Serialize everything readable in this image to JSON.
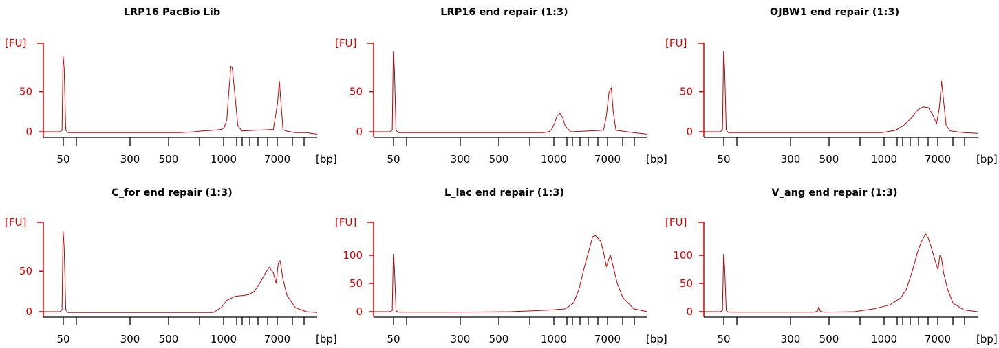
{
  "chart_data": [
    {
      "type": "line",
      "title": "LRP16 PacBio Lib",
      "ylabel": "[FU]",
      "xunit": "[bp]",
      "y_ticks": [
        0,
        50
      ],
      "ylim": [
        -8,
        108
      ],
      "x_ticks": [
        "50",
        "300",
        "500",
        "1000",
        "7000"
      ],
      "color": "#c00000",
      "x": [
        0,
        0.06,
        0.068,
        0.072,
        0.076,
        0.082,
        0.09,
        0.2,
        0.4,
        0.47,
        0.5,
        0.55,
        0.58,
        0.62,
        0.65,
        0.66,
        0.67,
        0.675,
        0.685,
        0.69,
        0.7,
        0.71,
        0.725,
        0.84,
        0.855,
        0.862,
        0.868,
        0.875,
        0.885,
        0.92,
        0.96,
        1
      ],
      "y": [
        0,
        0,
        2,
        95,
        80,
        2,
        -1,
        -1,
        -1,
        -1,
        -1,
        0,
        1,
        2,
        3,
        5,
        15,
        40,
        82,
        80,
        45,
        8,
        1,
        3,
        35,
        63,
        35,
        3,
        1,
        -1,
        -1,
        -3
      ]
    },
    {
      "type": "line",
      "title": "LRP16 end repair (1:3)",
      "ylabel": "[FU]",
      "xunit": "[bp]",
      "y_ticks": [
        0,
        50
      ],
      "ylim": [
        -8,
        108
      ],
      "x_ticks": [
        "50",
        "300",
        "500",
        "1000",
        "7000"
      ],
      "color": "#c00000",
      "x": [
        0,
        0.06,
        0.068,
        0.072,
        0.076,
        0.082,
        0.09,
        0.3,
        0.5,
        0.62,
        0.64,
        0.65,
        0.66,
        0.67,
        0.68,
        0.69,
        0.7,
        0.72,
        0.84,
        0.85,
        0.86,
        0.868,
        0.875,
        0.885,
        0.95,
        1
      ],
      "y": [
        0,
        0,
        2,
        100,
        80,
        2,
        -1,
        -1,
        -1,
        -1,
        0,
        3,
        10,
        20,
        23,
        18,
        7,
        0,
        2,
        20,
        50,
        55,
        25,
        2,
        -1,
        -3
      ]
    },
    {
      "type": "line",
      "title": "OJBW1 end repair (1:3)",
      "ylabel": "[FU]",
      "xunit": "[bp]",
      "y_ticks": [
        0,
        50
      ],
      "ylim": [
        -8,
        108
      ],
      "x_ticks": [
        "50",
        "300",
        "500",
        "1000",
        "7000"
      ],
      "color": "#c00000",
      "x": [
        0,
        0.06,
        0.068,
        0.072,
        0.076,
        0.082,
        0.09,
        0.3,
        0.55,
        0.65,
        0.7,
        0.73,
        0.76,
        0.78,
        0.8,
        0.82,
        0.835,
        0.85,
        0.86,
        0.868,
        0.875,
        0.885,
        0.9,
        0.95,
        1
      ],
      "y": [
        0,
        0,
        2,
        100,
        80,
        2,
        -1,
        -1,
        -1,
        -1,
        2,
        8,
        18,
        27,
        31,
        30,
        22,
        10,
        30,
        63,
        40,
        8,
        1,
        -1,
        -2
      ]
    },
    {
      "type": "line",
      "title": "C_for end repair (1:3)",
      "ylabel": "[FU]",
      "xunit": "[bp]",
      "y_ticks": [
        0,
        50
      ],
      "ylim": [
        -8,
        108
      ],
      "x_ticks": [
        "50",
        "300",
        "500",
        "1000",
        "7000"
      ],
      "color": "#c00000",
      "x": [
        0,
        0.06,
        0.068,
        0.072,
        0.076,
        0.082,
        0.09,
        0.3,
        0.5,
        0.62,
        0.65,
        0.67,
        0.7,
        0.73,
        0.75,
        0.77,
        0.79,
        0.81,
        0.825,
        0.84,
        0.85,
        0.858,
        0.865,
        0.875,
        0.89,
        0.92,
        0.96,
        1
      ],
      "y": [
        0,
        0,
        2,
        100,
        80,
        2,
        -1,
        -1,
        -1,
        -1,
        5,
        14,
        19,
        20,
        21,
        25,
        35,
        47,
        55,
        48,
        35,
        60,
        63,
        40,
        20,
        5,
        0,
        -1
      ]
    },
    {
      "type": "line",
      "title": "L_lac end repair (1:3)",
      "ylabel": "[FU]",
      "xunit": "[bp]",
      "y_ticks": [
        0,
        50,
        100
      ],
      "ylim": [
        -10,
        155
      ],
      "x_ticks": [
        "50",
        "300",
        "500",
        "1000",
        "7000"
      ],
      "color": "#c00000",
      "x": [
        0,
        0.06,
        0.068,
        0.072,
        0.076,
        0.082,
        0.09,
        0.3,
        0.5,
        0.6,
        0.65,
        0.7,
        0.73,
        0.75,
        0.77,
        0.79,
        0.8,
        0.81,
        0.83,
        0.84,
        0.85,
        0.86,
        0.865,
        0.875,
        0.89,
        0.91,
        0.95,
        1
      ],
      "y": [
        0,
        0,
        2,
        102,
        80,
        2,
        -1,
        -1,
        0,
        2,
        3,
        5,
        15,
        40,
        80,
        115,
        133,
        135,
        125,
        105,
        80,
        95,
        100,
        80,
        50,
        25,
        5,
        0
      ]
    },
    {
      "type": "line",
      "title": "V_ang end repair (1:3)",
      "ylabel": "[FU]",
      "xunit": "[bp]",
      "y_ticks": [
        0,
        50,
        100
      ],
      "ylim": [
        -10,
        155
      ],
      "x_ticks": [
        "50",
        "300",
        "500",
        "1000",
        "7000"
      ],
      "color": "#c00000",
      "x": [
        0,
        0.06,
        0.068,
        0.072,
        0.076,
        0.082,
        0.09,
        0.3,
        0.4,
        0.415,
        0.42,
        0.425,
        0.44,
        0.55,
        0.62,
        0.68,
        0.72,
        0.74,
        0.76,
        0.78,
        0.795,
        0.81,
        0.82,
        0.83,
        0.845,
        0.855,
        0.862,
        0.868,
        0.875,
        0.89,
        0.91,
        0.95,
        1
      ],
      "y": [
        0,
        0,
        2,
        102,
        80,
        2,
        -1,
        -1,
        -1,
        1,
        9,
        1,
        -1,
        0,
        5,
        12,
        25,
        40,
        70,
        105,
        125,
        138,
        130,
        115,
        90,
        75,
        100,
        95,
        70,
        40,
        15,
        3,
        0
      ]
    }
  ]
}
